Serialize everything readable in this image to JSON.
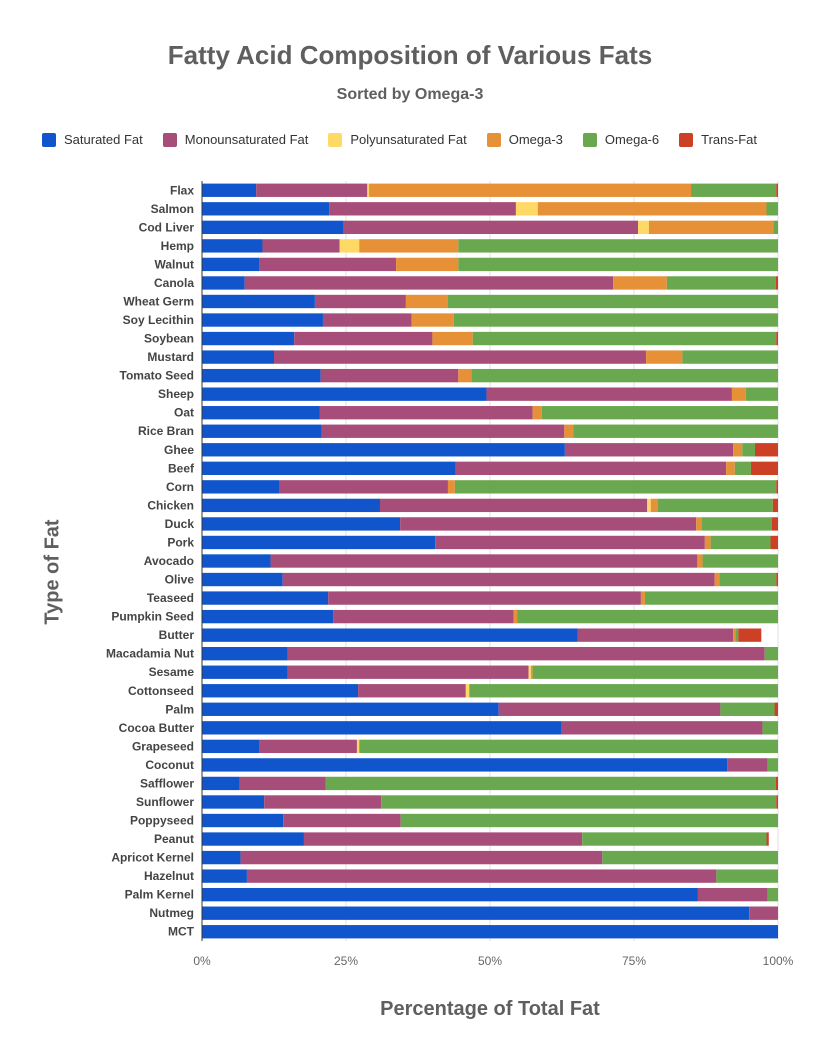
{
  "chart_data": {
    "type": "bar",
    "orientation": "horizontal",
    "stacked": "percent",
    "title": "Fatty Acid Composition of Various Fats",
    "subtitle": "Sorted by Omega-3",
    "xlabel": "Percentage of Total Fat",
    "ylabel": "Type of Fat",
    "xlim": [
      0,
      100
    ],
    "xticks": [
      "0%",
      "25%",
      "50%",
      "75%",
      "100%"
    ],
    "legend_position": "top",
    "categories": [
      "Flax",
      "Salmon",
      "Cod Liver",
      "Hemp",
      "Walnut",
      "Canola",
      "Wheat Germ",
      "Soy Lecithin",
      "Soybean",
      "Mustard",
      "Tomato Seed",
      "Sheep",
      "Oat",
      "Rice Bran",
      "Ghee",
      "Beef",
      "Corn",
      "Chicken",
      "Duck",
      "Pork",
      "Avocado",
      "Olive",
      "Teaseed",
      "Pumpkin Seed",
      "Butter",
      "Macadamia Nut",
      "Sesame",
      "Cottonseed",
      "Palm",
      "Cocoa Butter",
      "Grapeseed",
      "Coconut",
      "Safflower",
      "Sunflower",
      "Poppyseed",
      "Peanut",
      "Apricot Kernel",
      "Hazelnut",
      "Palm Kernel",
      "Nutmeg",
      "MCT"
    ],
    "series": [
      {
        "name": "Saturated Fat",
        "color": "#1155cc",
        "values": [
          9.4,
          22.1,
          24.6,
          10.5,
          9.9,
          7.4,
          19.6,
          21.0,
          16.0,
          12.5,
          20.6,
          49.4,
          20.4,
          20.8,
          63.0,
          44.0,
          13.5,
          30.9,
          34.4,
          40.5,
          11.9,
          14.0,
          21.9,
          22.8,
          65.2,
          14.9,
          14.9,
          27.1,
          51.5,
          62.4,
          9.9,
          91.2,
          6.5,
          10.8,
          14.1,
          17.7,
          6.7,
          7.8,
          86.1,
          95.0,
          100
        ]
      },
      {
        "name": "Monounsaturated Fat",
        "color": "#a64d79",
        "values": [
          19.3,
          32.4,
          51.1,
          13.4,
          23.8,
          64.0,
          15.8,
          15.4,
          24.0,
          64.6,
          23.9,
          42.6,
          37.0,
          42.1,
          29.2,
          47.0,
          29.2,
          46.4,
          51.4,
          46.8,
          74.1,
          75.0,
          54.3,
          31.3,
          27.0,
          82.8,
          41.8,
          18.7,
          38.5,
          34.9,
          17.0,
          7.0,
          15.0,
          20.3,
          20.4,
          48.3,
          62.8,
          81.5,
          12.1,
          5.0,
          0
        ]
      },
      {
        "name": "Polyunsaturated Fat",
        "color": "#ffd966",
        "values": [
          0.3,
          3.8,
          1.9,
          3.4,
          0,
          0,
          0,
          0,
          0,
          0,
          0,
          0,
          0,
          0,
          0,
          0,
          0,
          0.6,
          0,
          0,
          0,
          0,
          0,
          0,
          0,
          0,
          0.4,
          0.6,
          0,
          0,
          0.4,
          0,
          0,
          0,
          0,
          0,
          0,
          0,
          0,
          0,
          0
        ]
      },
      {
        "name": "Omega-3",
        "color": "#e69138",
        "values": [
          55.9,
          39.7,
          21.6,
          17.2,
          10.8,
          9.3,
          7.3,
          7.3,
          7.0,
          6.3,
          2.3,
          2.4,
          1.6,
          1.6,
          1.6,
          1.5,
          1.2,
          1.2,
          1.0,
          1.0,
          0.9,
          0.8,
          0.7,
          0.6,
          0.4,
          0,
          0.3,
          0,
          0,
          0,
          0,
          0,
          0,
          0,
          0,
          0,
          0,
          0,
          0,
          0,
          0
        ]
      },
      {
        "name": "Omega-6",
        "color": "#6aa84f",
        "values": [
          14.8,
          2.0,
          0.8,
          55.5,
          55.5,
          18.9,
          57.3,
          56.3,
          52.7,
          16.6,
          53.2,
          5.6,
          41.0,
          35.5,
          2.2,
          2.8,
          55.8,
          20.0,
          12.1,
          10.4,
          13.1,
          9.9,
          23.1,
          45.3,
          0.5,
          2.3,
          42.6,
          53.6,
          9.4,
          2.7,
          72.7,
          1.8,
          78.1,
          68.6,
          65.5,
          32.0,
          30.5,
          10.7,
          1.8,
          0,
          0
        ]
      },
      {
        "name": "Trans-Fat",
        "color": "#cc4125",
        "values": [
          0.3,
          0,
          0,
          0,
          0,
          0.4,
          0,
          0,
          0.3,
          0,
          0,
          0,
          0,
          0,
          4.0,
          4.7,
          0.3,
          0.9,
          1.1,
          1.3,
          0,
          0.3,
          0,
          0,
          4.0,
          0,
          0,
          0,
          0.6,
          0,
          0,
          0,
          0.4,
          0.3,
          0,
          0.4,
          0,
          0,
          0,
          0,
          0
        ]
      }
    ]
  }
}
